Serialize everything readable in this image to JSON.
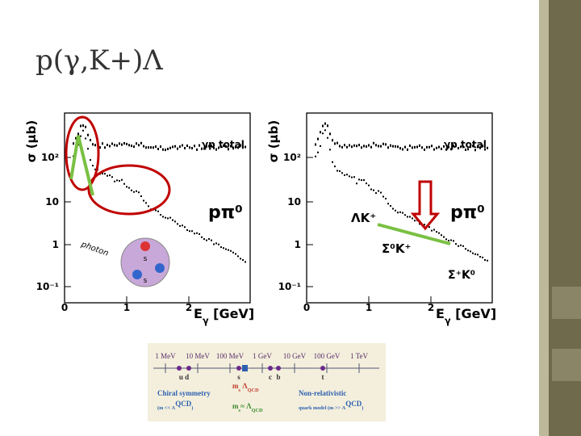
{
  "title": "p(γ,K+)Λ",
  "plots": [
    {
      "y_label": "σ (μb)",
      "y_ticks": [
        "10²",
        "10",
        "1",
        "10⁻¹"
      ],
      "x_ticks": [
        "0",
        "1",
        "2"
      ],
      "x_label": [
        "E",
        "γ",
        " [GeV]"
      ],
      "annotations": [
        "γp total",
        "pπ⁰",
        "photon",
        "s",
        "s"
      ]
    },
    {
      "y_label": "σ (μb)",
      "y_ticks": [
        "10²",
        "10",
        "1",
        "10⁻¹"
      ],
      "x_ticks": [
        "0",
        "1",
        "2"
      ],
      "x_label": [
        "E",
        "γ",
        " [GeV]"
      ],
      "annotations": [
        "γp total",
        "pπ⁰",
        "ΛK⁺",
        "Σ⁰K⁺",
        "Σ⁺K⁰"
      ]
    }
  ],
  "scale": {
    "energies": [
      "1 MeV",
      "10 MeV",
      "100 MeV",
      "1 GeV",
      "10 GeV",
      "100 GeV",
      "1 TeV"
    ],
    "quarks": [
      "u d",
      "s",
      "c",
      "b",
      "t"
    ],
    "chiral": [
      "Chiral symmetry",
      "(m << Λ",
      "QCD",
      ")"
    ],
    "ms_red": [
      "m",
      "s",
      " Λ",
      "QCD"
    ],
    "ms_green": [
      "m",
      "s",
      "≈ Λ",
      "QCD"
    ],
    "nonrel": [
      "Non-relativistic",
      "quark model (m >> Λ",
      "QCD",
      ")"
    ]
  }
}
